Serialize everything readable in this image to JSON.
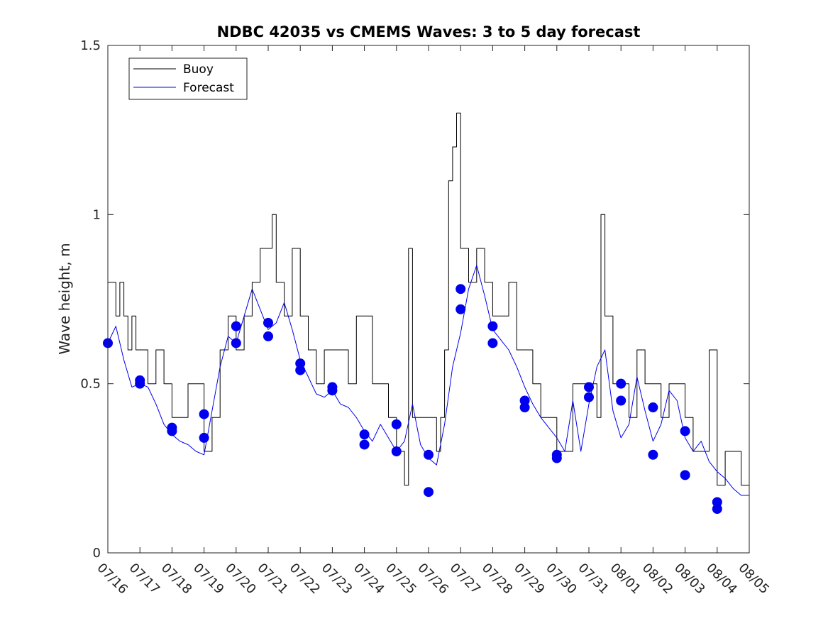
{
  "chart_data": {
    "type": "line",
    "title": "NDBC 42035 vs CMEMS Waves: 3 to 5 day forecast",
    "ylabel": "Wave height, m",
    "xlabel": "",
    "xlim": [
      "07/16 00:00",
      "08/05 00:00"
    ],
    "ylim": [
      0,
      1.5
    ],
    "grid": false,
    "legend_position": "top-left",
    "x_tick_labels": [
      "07/16",
      "07/17",
      "07/18",
      "07/19",
      "07/20",
      "07/21",
      "07/22",
      "07/23",
      "07/24",
      "07/25",
      "07/26",
      "07/27",
      "07/28",
      "07/29",
      "07/30",
      "07/31",
      "08/01",
      "08/02",
      "08/03",
      "08/04",
      "08/05"
    ],
    "y_ticks": [
      0,
      0.5,
      1,
      1.5
    ],
    "y_tick_labels": [
      "0",
      "0.5",
      "1",
      "1.5"
    ],
    "colors": {
      "buoy": "#000000",
      "forecast": "#0000ee"
    },
    "series": [
      {
        "name": "Buoy",
        "style": "step",
        "x": [
          "07/16 00:00",
          "07/16 03:00",
          "07/16 06:00",
          "07/16 09:00",
          "07/16 12:00",
          "07/16 15:00",
          "07/16 18:00",
          "07/16 21:00",
          "07/17 00:00",
          "07/17 06:00",
          "07/17 12:00",
          "07/17 18:00",
          "07/18 00:00",
          "07/18 06:00",
          "07/18 12:00",
          "07/18 18:00",
          "07/19 00:00",
          "07/19 06:00",
          "07/19 12:00",
          "07/19 18:00",
          "07/20 00:00",
          "07/20 06:00",
          "07/20 12:00",
          "07/20 18:00",
          "07/21 00:00",
          "07/21 03:00",
          "07/21 06:00",
          "07/21 12:00",
          "07/21 18:00",
          "07/22 00:00",
          "07/22 06:00",
          "07/22 12:00",
          "07/22 18:00",
          "07/23 00:00",
          "07/23 06:00",
          "07/23 12:00",
          "07/23 18:00",
          "07/24 00:00",
          "07/24 06:00",
          "07/24 12:00",
          "07/24 18:00",
          "07/25 00:00",
          "07/25 06:00",
          "07/25 09:00",
          "07/25 12:00",
          "07/25 18:00",
          "07/26 00:00",
          "07/26 06:00",
          "07/26 09:00",
          "07/26 12:00",
          "07/26 15:00",
          "07/26 18:00",
          "07/26 21:00",
          "07/27 00:00",
          "07/27 06:00",
          "07/27 12:00",
          "07/27 18:00",
          "07/28 00:00",
          "07/28 06:00",
          "07/28 12:00",
          "07/28 18:00",
          "07/29 00:00",
          "07/29 06:00",
          "07/29 12:00",
          "07/29 18:00",
          "07/30 00:00",
          "07/30 06:00",
          "07/30 12:00",
          "07/30 18:00",
          "07/31 00:00",
          "07/31 06:00",
          "07/31 09:00",
          "07/31 12:00",
          "07/31 18:00",
          "08/01 00:00",
          "08/01 06:00",
          "08/01 12:00",
          "08/01 18:00",
          "08/02 00:00",
          "08/02 06:00",
          "08/02 12:00",
          "08/02 18:00",
          "08/03 00:00",
          "08/03 06:00",
          "08/03 12:00",
          "08/03 18:00",
          "08/04 00:00",
          "08/04 06:00",
          "08/04 12:00",
          "08/04 18:00",
          "08/05 00:00"
        ],
        "y": [
          0.8,
          0.8,
          0.7,
          0.8,
          0.7,
          0.6,
          0.7,
          0.6,
          0.6,
          0.5,
          0.6,
          0.5,
          0.4,
          0.4,
          0.5,
          0.5,
          0.3,
          0.4,
          0.6,
          0.7,
          0.6,
          0.7,
          0.8,
          0.9,
          0.9,
          1.0,
          0.8,
          0.7,
          0.9,
          0.7,
          0.6,
          0.5,
          0.6,
          0.6,
          0.6,
          0.5,
          0.7,
          0.7,
          0.5,
          0.5,
          0.4,
          0.3,
          0.2,
          0.9,
          0.4,
          0.4,
          0.4,
          0.3,
          0.4,
          0.6,
          1.1,
          1.2,
          1.3,
          0.9,
          0.8,
          0.9,
          0.8,
          0.7,
          0.7,
          0.8,
          0.6,
          0.6,
          0.5,
          0.4,
          0.4,
          0.3,
          0.3,
          0.5,
          0.5,
          0.5,
          0.4,
          1.0,
          0.7,
          0.5,
          0.5,
          0.4,
          0.6,
          0.5,
          0.5,
          0.4,
          0.5,
          0.5,
          0.4,
          0.3,
          0.3,
          0.6,
          0.2,
          0.3,
          0.3,
          0.2,
          0.2
        ]
      },
      {
        "name": "Forecast",
        "style": "line",
        "x": [
          "07/16 00:00",
          "07/16 06:00",
          "07/16 12:00",
          "07/16 18:00",
          "07/17 00:00",
          "07/17 06:00",
          "07/17 12:00",
          "07/17 18:00",
          "07/18 00:00",
          "07/18 06:00",
          "07/18 12:00",
          "07/18 18:00",
          "07/19 00:00",
          "07/19 06:00",
          "07/19 12:00",
          "07/19 18:00",
          "07/20 00:00",
          "07/20 06:00",
          "07/20 12:00",
          "07/20 18:00",
          "07/21 00:00",
          "07/21 06:00",
          "07/21 12:00",
          "07/21 18:00",
          "07/22 00:00",
          "07/22 06:00",
          "07/22 12:00",
          "07/22 18:00",
          "07/23 00:00",
          "07/23 06:00",
          "07/23 12:00",
          "07/23 18:00",
          "07/24 00:00",
          "07/24 06:00",
          "07/24 12:00",
          "07/24 18:00",
          "07/25 00:00",
          "07/25 06:00",
          "07/25 12:00",
          "07/25 18:00",
          "07/26 00:00",
          "07/26 06:00",
          "07/26 12:00",
          "07/26 18:00",
          "07/27 00:00",
          "07/27 06:00",
          "07/27 12:00",
          "07/27 18:00",
          "07/28 00:00",
          "07/28 06:00",
          "07/28 12:00",
          "07/28 18:00",
          "07/29 00:00",
          "07/29 06:00",
          "07/29 12:00",
          "07/29 18:00",
          "07/30 00:00",
          "07/30 06:00",
          "07/30 12:00",
          "07/30 18:00",
          "07/31 00:00",
          "07/31 06:00",
          "07/31 12:00",
          "07/31 18:00",
          "08/01 00:00",
          "08/01 06:00",
          "08/01 12:00",
          "08/01 18:00",
          "08/02 00:00",
          "08/02 06:00",
          "08/02 12:00",
          "08/02 18:00",
          "08/03 00:00",
          "08/03 06:00",
          "08/03 12:00",
          "08/03 18:00",
          "08/04 00:00",
          "08/04 06:00",
          "08/04 12:00",
          "08/04 18:00",
          "08/05 00:00"
        ],
        "y": [
          0.62,
          0.67,
          0.57,
          0.49,
          0.5,
          0.49,
          0.44,
          0.38,
          0.35,
          0.33,
          0.32,
          0.3,
          0.29,
          0.42,
          0.55,
          0.64,
          0.62,
          0.7,
          0.78,
          0.72,
          0.66,
          0.68,
          0.74,
          0.66,
          0.57,
          0.52,
          0.47,
          0.46,
          0.48,
          0.44,
          0.43,
          0.4,
          0.36,
          0.33,
          0.38,
          0.34,
          0.3,
          0.33,
          0.44,
          0.32,
          0.28,
          0.26,
          0.38,
          0.55,
          0.65,
          0.78,
          0.85,
          0.76,
          0.66,
          0.63,
          0.6,
          0.55,
          0.49,
          0.44,
          0.4,
          0.37,
          0.34,
          0.3,
          0.45,
          0.3,
          0.44,
          0.55,
          0.6,
          0.42,
          0.34,
          0.38,
          0.52,
          0.42,
          0.33,
          0.38,
          0.48,
          0.45,
          0.34,
          0.3,
          0.33,
          0.27,
          0.24,
          0.22,
          0.19,
          0.17,
          0.17
        ]
      }
    ],
    "markers": {
      "name": "Forecast",
      "x": [
        "07/16 00:00",
        "07/17 00:00",
        "07/17 00:00",
        "07/18 00:00",
        "07/18 00:00",
        "07/19 00:00",
        "07/19 00:00",
        "07/20 00:00",
        "07/20 00:00",
        "07/21 00:00",
        "07/21 00:00",
        "07/22 00:00",
        "07/22 00:00",
        "07/23 00:00",
        "07/23 00:00",
        "07/24 00:00",
        "07/24 00:00",
        "07/25 00:00",
        "07/25 00:00",
        "07/26 00:00",
        "07/26 00:00",
        "07/27 00:00",
        "07/27 00:00",
        "07/28 00:00",
        "07/28 00:00",
        "07/29 00:00",
        "07/29 00:00",
        "07/30 00:00",
        "07/30 00:00",
        "07/31 00:00",
        "07/31 00:00",
        "08/01 00:00",
        "08/01 00:00",
        "08/02 00:00",
        "08/02 00:00",
        "08/03 00:00",
        "08/03 00:00",
        "08/04 00:00",
        "08/04 00:00"
      ],
      "y": [
        0.62,
        0.51,
        0.5,
        0.37,
        0.36,
        0.41,
        0.34,
        0.67,
        0.62,
        0.68,
        0.64,
        0.56,
        0.54,
        0.49,
        0.48,
        0.35,
        0.32,
        0.38,
        0.3,
        0.29,
        0.18,
        0.78,
        0.72,
        0.67,
        0.62,
        0.45,
        0.43,
        0.29,
        0.28,
        0.49,
        0.46,
        0.5,
        0.45,
        0.43,
        0.29,
        0.36,
        0.23,
        0.15,
        0.13
      ]
    },
    "legend": [
      {
        "label": "Buoy",
        "color": "#000000"
      },
      {
        "label": "Forecast",
        "color": "#0000ee"
      }
    ]
  }
}
